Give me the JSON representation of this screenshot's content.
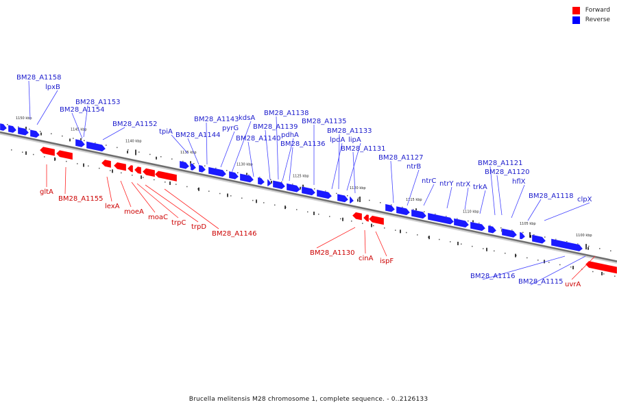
{
  "legend": {
    "forward_label": "Forward",
    "reverse_label": "Reverse",
    "forward_color": "#ff0000",
    "reverse_color": "#0000ff"
  },
  "caption": "Brucella melitensis M28 chromosome 1, complete sequence. - 0..2126133",
  "colors": {
    "forward": "#ff0000",
    "reverse": "#1a1aff",
    "label_forward": "#cc0000",
    "label_reverse": "#1a1acc",
    "backbone": "#777777"
  },
  "ticks": [
    "1150 kbp",
    "1145 kbp",
    "1140 kbp",
    "1135 kbp",
    "1130 kbp",
    "1125 kbp",
    "1120 kbp",
    "1115 kbp",
    "1110 kbp",
    "1105 kbp",
    "1100 kbp"
  ],
  "reverse_genes": [
    "BM28_A1158",
    "lpxB",
    "BM28_A1153",
    "BM28_A1154",
    "BM28_A1152",
    "tpiA",
    "BM28_A1143",
    "BM28_A1144",
    "pyrG",
    "kdsA",
    "BM28_A1140",
    "BM28_A1138",
    "BM28_A1139",
    "pdhA",
    "BM28_A1136",
    "BM28_A1135",
    "BM28_A1133",
    "lpdA",
    "lipA",
    "BM28_A1131",
    "BM28_A1127",
    "ntrB",
    "ntrC",
    "ntrY",
    "ntrX",
    "trkA",
    "BM28_A1121",
    "BM28_A1120",
    "hflX",
    "BM28_A1118",
    "clpX",
    "BM28_A1116",
    "BM28_A1115"
  ],
  "forward_genes": [
    "gltA",
    "BM28_A1155",
    "lexA",
    "moeA",
    "moaC",
    "trpC",
    "trpD",
    "BM28_A1146",
    "BM28_A1130",
    "cinA",
    "ispF",
    "uvrA"
  ]
}
